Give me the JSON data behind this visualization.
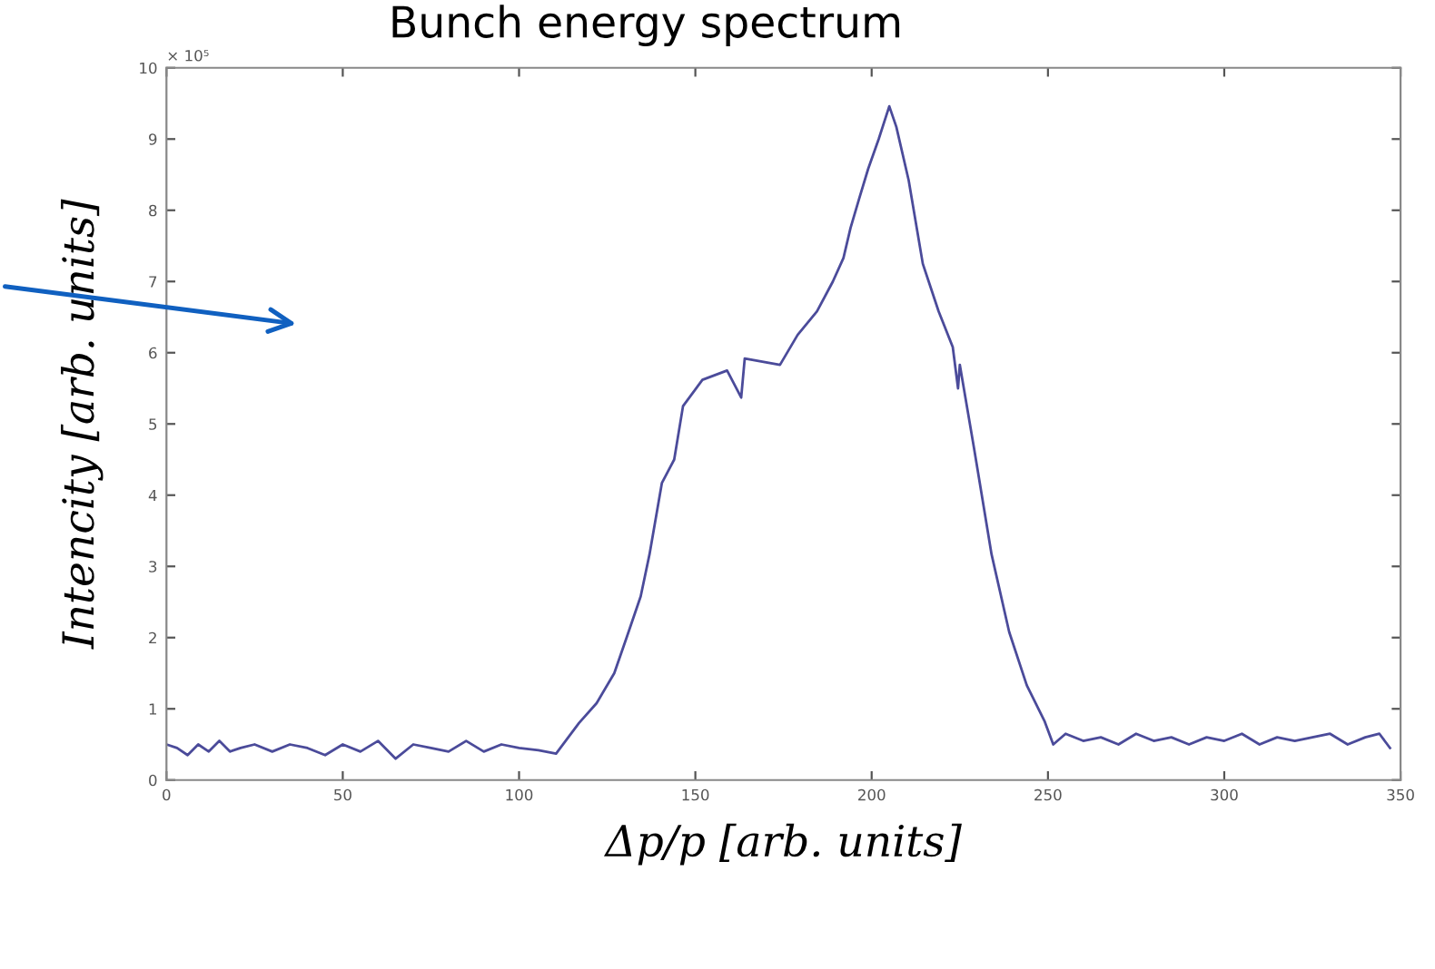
{
  "chart_data": {
    "type": "line",
    "title": "Bunch energy spectrum",
    "xlabel": "Δp/p [arb. units]",
    "ylabel": "Intencity [arb. units]",
    "annotations": [
      "× 10⁵"
    ],
    "series": [
      {
        "color": "#4b4b9a",
        "x": [
          0,
          3,
          6,
          9,
          12,
          15,
          18,
          21,
          25,
          30,
          35,
          40,
          45,
          50,
          55,
          60,
          65,
          70,
          75,
          80,
          85,
          90,
          95,
          100,
          105.5,
          110.5,
          117,
          122,
          127,
          130.5,
          134.5,
          137,
          140.5,
          144,
          146.5,
          152,
          159,
          163,
          164,
          174,
          179,
          184.5,
          189,
          192,
          194,
          196.5,
          199,
          202,
          205,
          207,
          210.5,
          214.5,
          219,
          223,
          224.5,
          225,
          229,
          231.5,
          234,
          239,
          244,
          249,
          251.5,
          255,
          260,
          265,
          270,
          275,
          280,
          285,
          290,
          295,
          300,
          305,
          310,
          315,
          320,
          325,
          330,
          335,
          340,
          344,
          347
        ],
        "values": [
          0.5,
          0.45,
          0.35,
          0.5,
          0.4,
          0.55,
          0.4,
          0.45,
          0.5,
          0.4,
          0.5,
          0.45,
          0.35,
          0.5,
          0.4,
          0.55,
          0.3,
          0.5,
          0.45,
          0.4,
          0.55,
          0.4,
          0.5,
          0.45,
          0.42,
          0.37,
          0.8,
          1.08,
          1.5,
          2.0,
          2.58,
          3.17,
          4.17,
          4.5,
          5.25,
          5.62,
          5.75,
          5.37,
          5.92,
          5.83,
          6.25,
          6.58,
          7.0,
          7.33,
          7.75,
          8.17,
          8.58,
          9.0,
          9.46,
          9.17,
          8.42,
          7.25,
          6.58,
          6.08,
          5.5,
          5.83,
          4.67,
          3.92,
          3.17,
          2.08,
          1.33,
          0.83,
          0.5,
          0.65,
          0.55,
          0.6,
          0.5,
          0.65,
          0.55,
          0.6,
          0.5,
          0.6,
          0.55,
          0.65,
          0.5,
          0.6,
          0.55,
          0.6,
          0.65,
          0.5,
          0.6,
          0.65,
          0.45
        ]
      }
    ],
    "xlim": [
      0,
      350
    ],
    "xticks": [
      0,
      50,
      100,
      150,
      200,
      250,
      300,
      350
    ],
    "ylim": [
      0,
      10
    ],
    "yticks": [
      0,
      1,
      2,
      3,
      4,
      5,
      6,
      7,
      8,
      9,
      10
    ],
    "grid": false,
    "legend": false,
    "marker": "none",
    "line_style": "solid"
  }
}
